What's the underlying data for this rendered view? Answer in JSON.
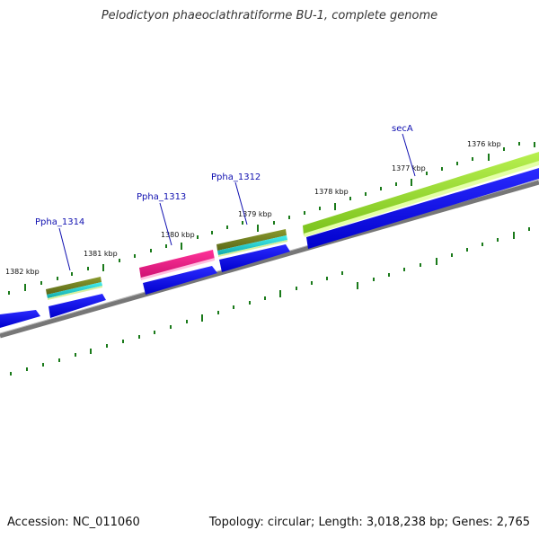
{
  "title": "Pelodictyon phaeoclathratiforme BU-1, complete genome",
  "accession": "Accession: NC_011060",
  "summary": "Topology: circular; Length: 3,018,238 bp; Genes: 2,765",
  "scale": {
    "labels": [
      "1376 kbp",
      "1377 kbp",
      "1378 kbp",
      "1379 kbp",
      "1380 kbp",
      "1381 kbp",
      "1382 kbp"
    ]
  },
  "genes": [
    {
      "label": "secA",
      "color": "#99dd33"
    },
    {
      "label": "Ppha_1312",
      "color": "#6b7a1e"
    },
    {
      "label": "Ppha_1313",
      "color": "#ee1188"
    },
    {
      "label": "Ppha_1314",
      "color": "#6b7a1e"
    }
  ],
  "colors": {
    "cds": "#0000ee",
    "backbone": "#888888",
    "tick": "#1a7a1a",
    "accent_cyan": "#22cccc",
    "label": "#1010b0"
  }
}
